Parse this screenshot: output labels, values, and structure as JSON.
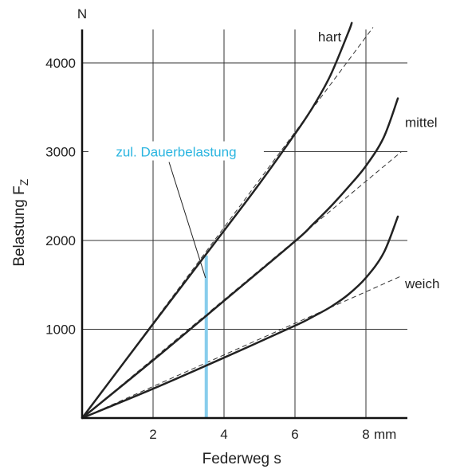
{
  "chart_data": {
    "type": "line",
    "title": "",
    "xlabel": "Federweg s",
    "ylabel": "Belastung F",
    "ylabel_subscript": "Z",
    "y_unit": "N",
    "x_unit": "mm",
    "xlim": [
      0,
      9
    ],
    "ylim": [
      0,
      4400
    ],
    "x_ticks": [
      2,
      4,
      6,
      8
    ],
    "x_tick_labels": [
      "2",
      "4",
      "6",
      "8"
    ],
    "y_ticks": [
      1000,
      2000,
      3000,
      4000
    ],
    "y_tick_labels": [
      "1000",
      "2000",
      "3000",
      "4000"
    ],
    "grid": true,
    "series": [
      {
        "name": "hart",
        "points": [
          [
            0,
            0
          ],
          [
            2,
            1060
          ],
          [
            4,
            2110
          ],
          [
            5,
            2640
          ],
          [
            6,
            3200
          ],
          [
            6.5,
            3500
          ],
          [
            7,
            3860
          ],
          [
            7.5,
            4340
          ],
          [
            7.6,
            4450
          ]
        ],
        "tangent": [
          [
            0,
            0
          ],
          [
            8.2,
            4400
          ]
        ]
      },
      {
        "name": "mittel",
        "points": [
          [
            0,
            0
          ],
          [
            2,
            650
          ],
          [
            4,
            1320
          ],
          [
            6,
            1990
          ],
          [
            6.5,
            2180
          ],
          [
            7,
            2380
          ],
          [
            7.5,
            2600
          ],
          [
            8,
            2840
          ],
          [
            8.5,
            3160
          ],
          [
            8.9,
            3600
          ]
        ],
        "tangent": [
          [
            0,
            0
          ],
          [
            9,
            3000
          ]
        ]
      },
      {
        "name": "weich",
        "points": [
          [
            0,
            0
          ],
          [
            2,
            330
          ],
          [
            4,
            680
          ],
          [
            6,
            1040
          ],
          [
            6.5,
            1140
          ],
          [
            7,
            1250
          ],
          [
            7.5,
            1390
          ],
          [
            8,
            1580
          ],
          [
            8.5,
            1860
          ],
          [
            8.9,
            2270
          ]
        ],
        "tangent": [
          [
            0,
            0
          ],
          [
            9,
            1600
          ]
        ]
      }
    ],
    "annotation": {
      "label": "zul. Dauerbelastung",
      "x": 3.5,
      "y_from": 0,
      "y_to": 1830,
      "label_y": 3000,
      "color": "#87cdec",
      "text_color": "#2bb5e0"
    },
    "colors": {
      "curve": "#222222",
      "grid": "#333333",
      "axis": "#111111"
    }
  }
}
